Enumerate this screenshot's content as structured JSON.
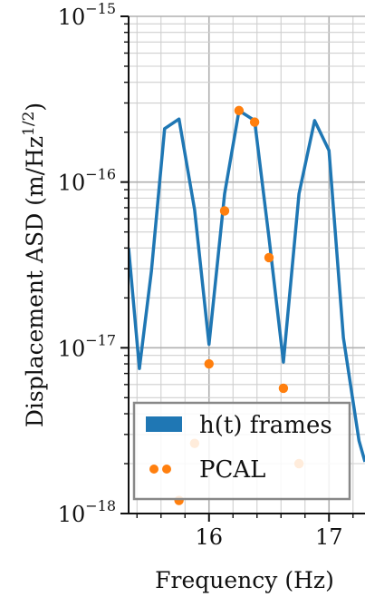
{
  "chart_data": {
    "type": "line",
    "title": "",
    "xlabel": "Frequency (Hz)",
    "ylabel_main": "Displacement ASD (m/Hz",
    "ylabel_sup": "1/2",
    "ylabel_end": ")",
    "xlim": [
      15.33,
      17.3
    ],
    "ylim_exp": [
      -18,
      -15
    ],
    "yscale": "log",
    "grid": true,
    "xticks": [
      {
        "value": 16,
        "label": "16"
      },
      {
        "value": 17,
        "label": "17"
      }
    ],
    "yticks": [
      {
        "exp": -18,
        "base": "10",
        "sup": "−18"
      },
      {
        "exp": -17,
        "base": "10",
        "sup": "−17"
      },
      {
        "exp": -16,
        "base": "10",
        "sup": "−16"
      },
      {
        "exp": -15,
        "base": "10",
        "sup": "−15"
      }
    ],
    "series": [
      {
        "name": "h(t) frames",
        "kind": "line",
        "color": "#1f77b4",
        "x": [
          15.33,
          15.42,
          15.52,
          15.63,
          15.75,
          15.88,
          16.0,
          16.13,
          16.25,
          16.38,
          16.5,
          16.62,
          16.75,
          16.88,
          17.0,
          17.12,
          17.25,
          17.3
        ],
        "y": [
          4e-17,
          7.5e-18,
          2.9e-17,
          2.1e-16,
          2.4e-16,
          6.8e-17,
          1.05e-17,
          8.5e-17,
          2.7e-16,
          2.35e-16,
          4.6e-17,
          8.2e-18,
          8.5e-17,
          2.35e-16,
          1.55e-16,
          1.15e-17,
          2.75e-18,
          2.05e-18
        ]
      },
      {
        "name": "PCAL",
        "kind": "scatter",
        "color": "#ff7f0e",
        "x": [
          15.75,
          15.88,
          16.0,
          16.13,
          16.25,
          16.38,
          16.5,
          16.62,
          16.75
        ],
        "y": [
          1.2e-18,
          2.65e-18,
          8e-18,
          6.7e-17,
          2.7e-16,
          2.3e-16,
          3.5e-17,
          5.7e-18,
          2e-18
        ]
      }
    ],
    "legend": {
      "placement": "lower-left"
    }
  }
}
